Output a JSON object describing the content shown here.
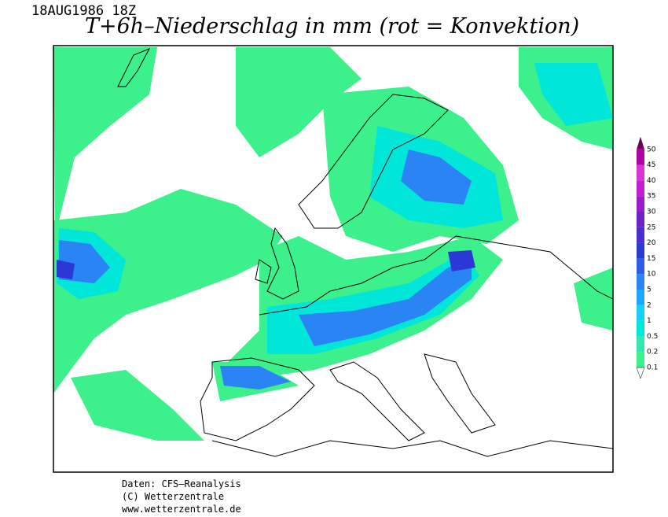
{
  "header": {
    "date": "18AUG1986 18Z",
    "title": "T+6h–Niederschlag in mm (rot = Konvektion)"
  },
  "legend": {
    "levels": [
      0.1,
      0.2,
      0.5,
      1,
      2,
      5,
      10,
      15,
      20,
      25,
      30,
      35,
      40,
      45,
      50
    ],
    "colors": [
      "#3cf08c",
      "#30e8b0",
      "#00e6d8",
      "#18d0f4",
      "#1aa8ff",
      "#2a84f4",
      "#2f5ce6",
      "#2c38d6",
      "#4a2cd0",
      "#6e22c8",
      "#9a1ec8",
      "#c020d0",
      "#dc34d0",
      "#b000a8"
    ]
  },
  "footer": [
    "Daten: CFS–Reanalysis",
    "(C) Wetterzentrale",
    "www.wetterzentrale.de"
  ]
}
